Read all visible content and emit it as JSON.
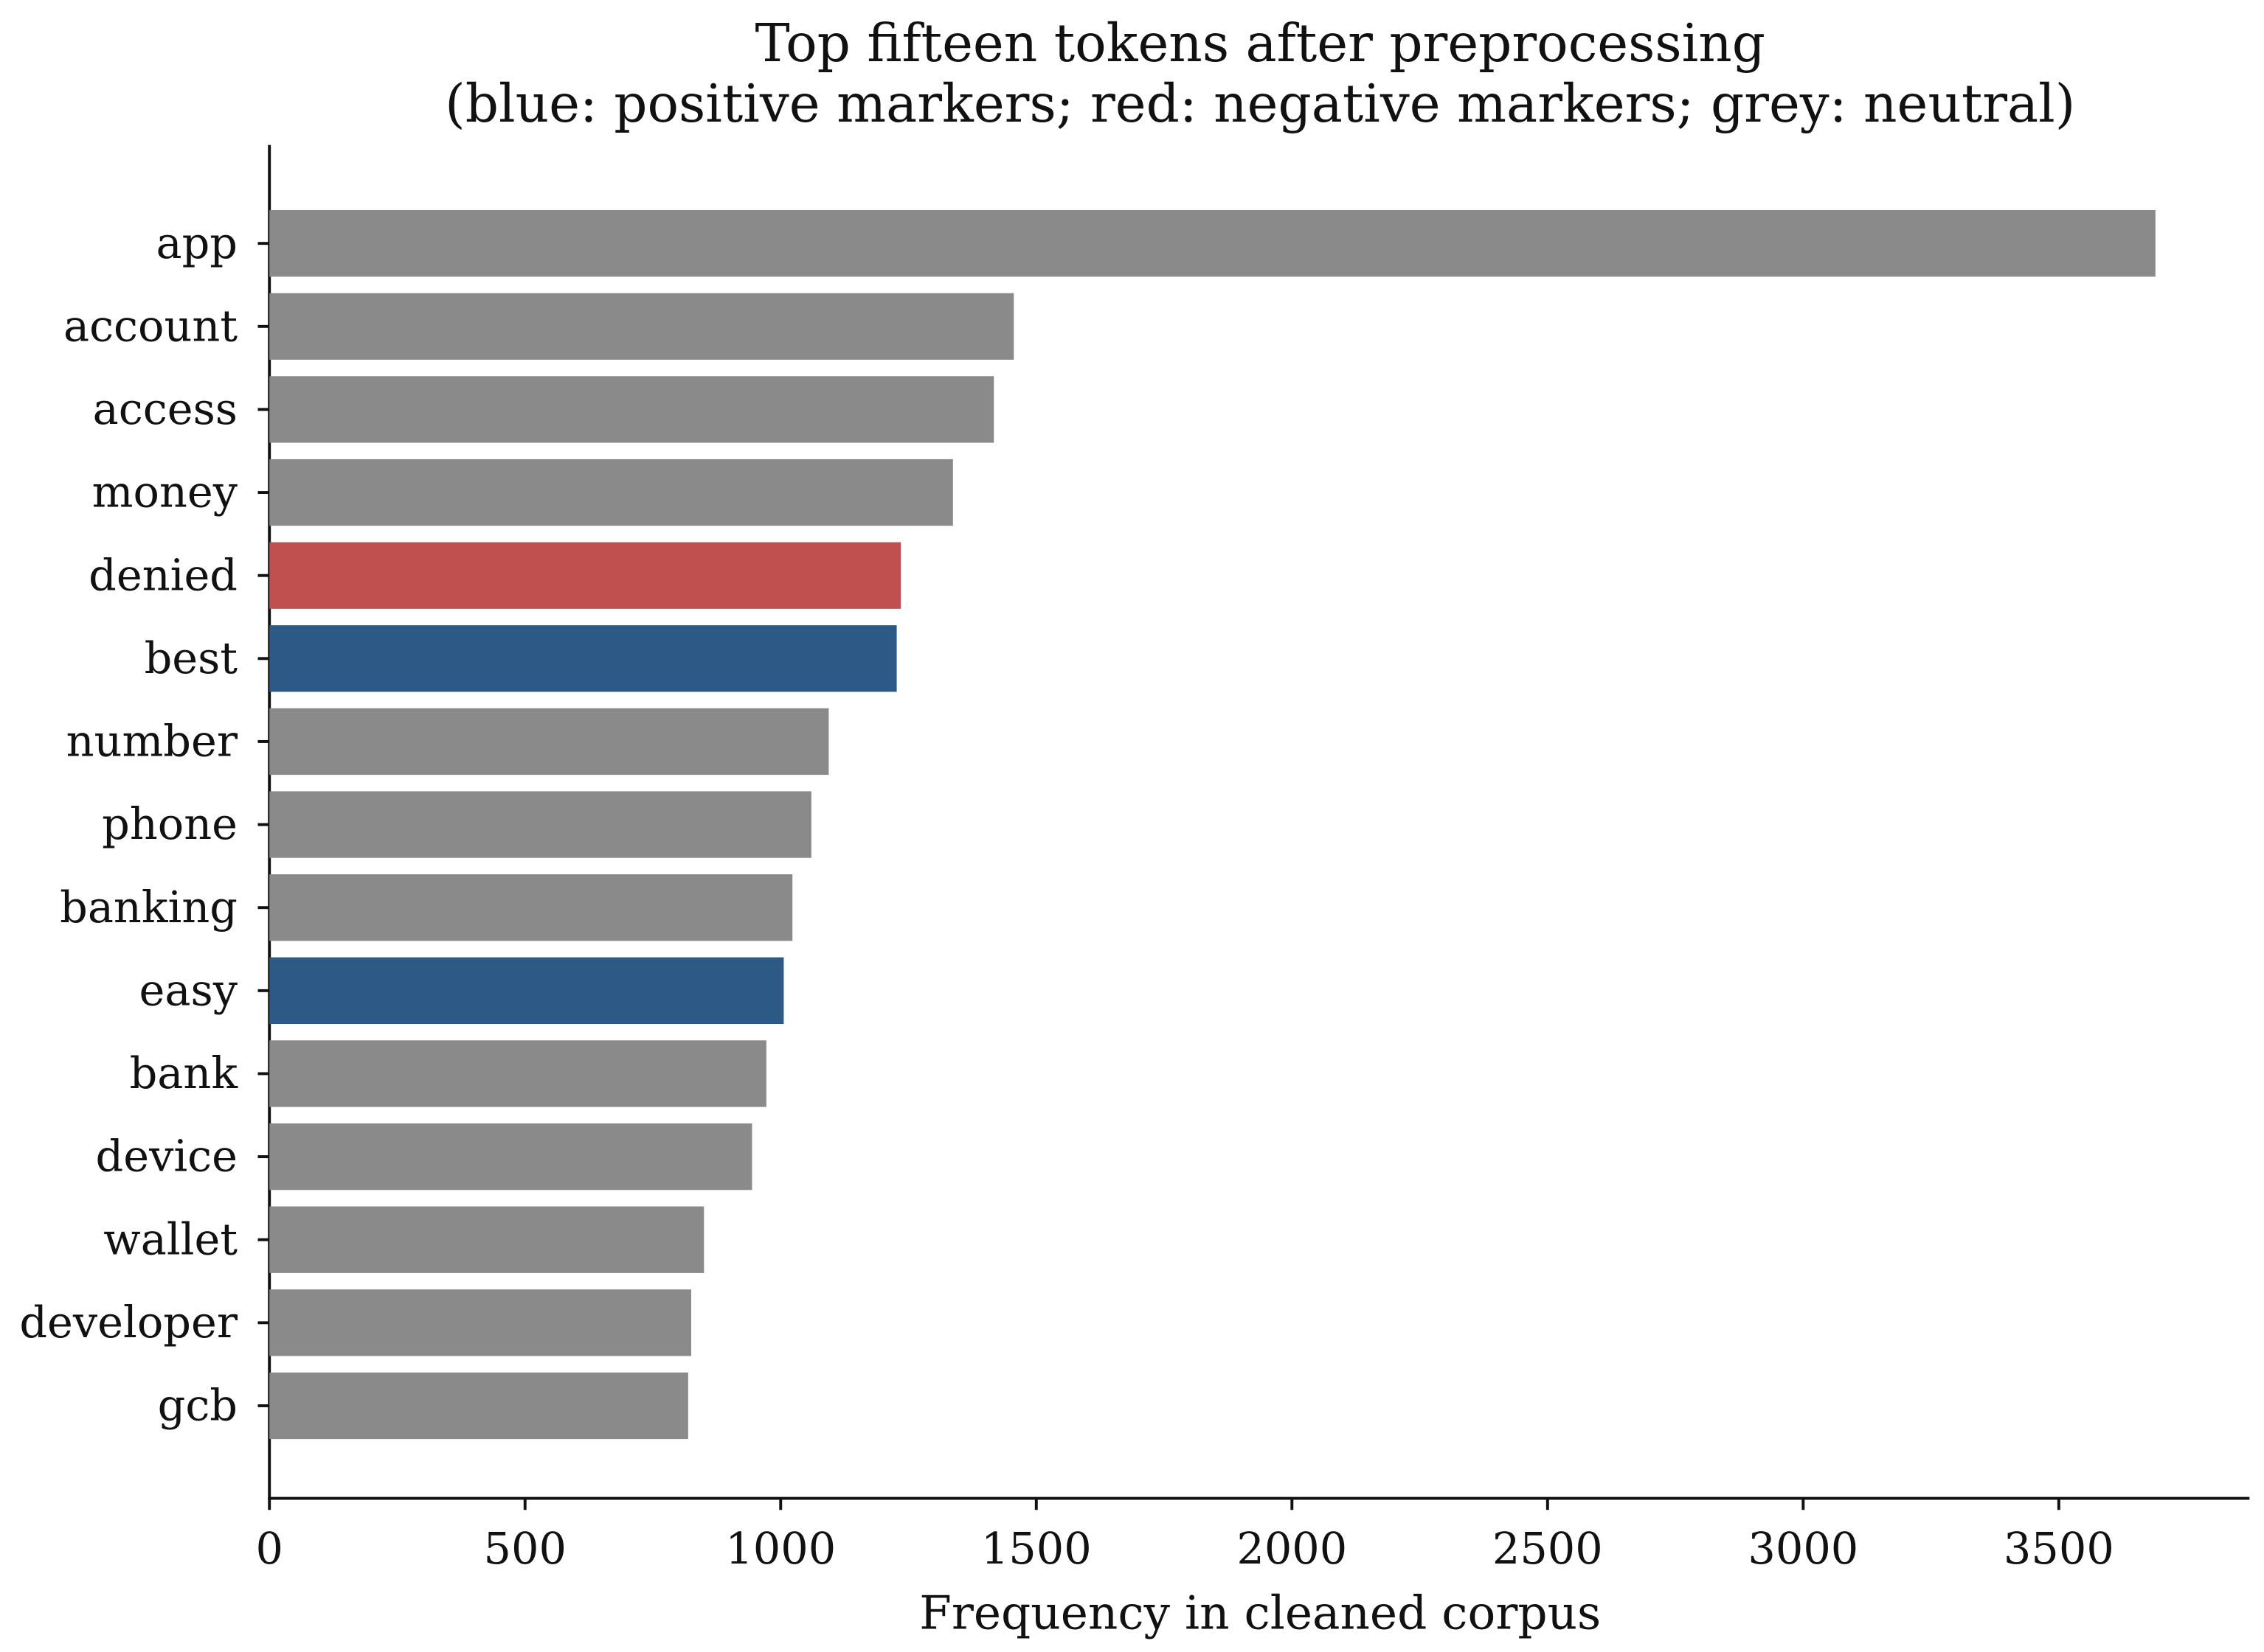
{
  "chart_data": {
    "type": "barh",
    "title": "Top fifteen tokens after preprocessing",
    "subtitle": "(blue: positive markers; red: negative markers; grey: neutral)",
    "x_label": "Frequency in cleaned corpus",
    "categories": [
      "app",
      "account",
      "access",
      "money",
      "denied",
      "best",
      "number",
      "phone",
      "banking",
      "easy",
      "bank",
      "device",
      "wallet",
      "developer",
      "gcb"
    ],
    "values": [
      3689,
      1456,
      1417,
      1337,
      1235,
      1227,
      1094,
      1060,
      1023,
      1006,
      972,
      944,
      850,
      825,
      819
    ],
    "colors": [
      "#898a89",
      "#898a89",
      "#898a89",
      "#898a89",
      "#c0504f",
      "#2c5985",
      "#898a89",
      "#898a89",
      "#898a89",
      "#2c5985",
      "#898a89",
      "#898a89",
      "#898a89",
      "#898a89",
      "#898a89"
    ],
    "xlim": [
      0,
      3873
    ],
    "xticks": [
      0,
      500,
      1000,
      1500,
      2000,
      2500,
      3000,
      3500
    ],
    "grid": false
  }
}
